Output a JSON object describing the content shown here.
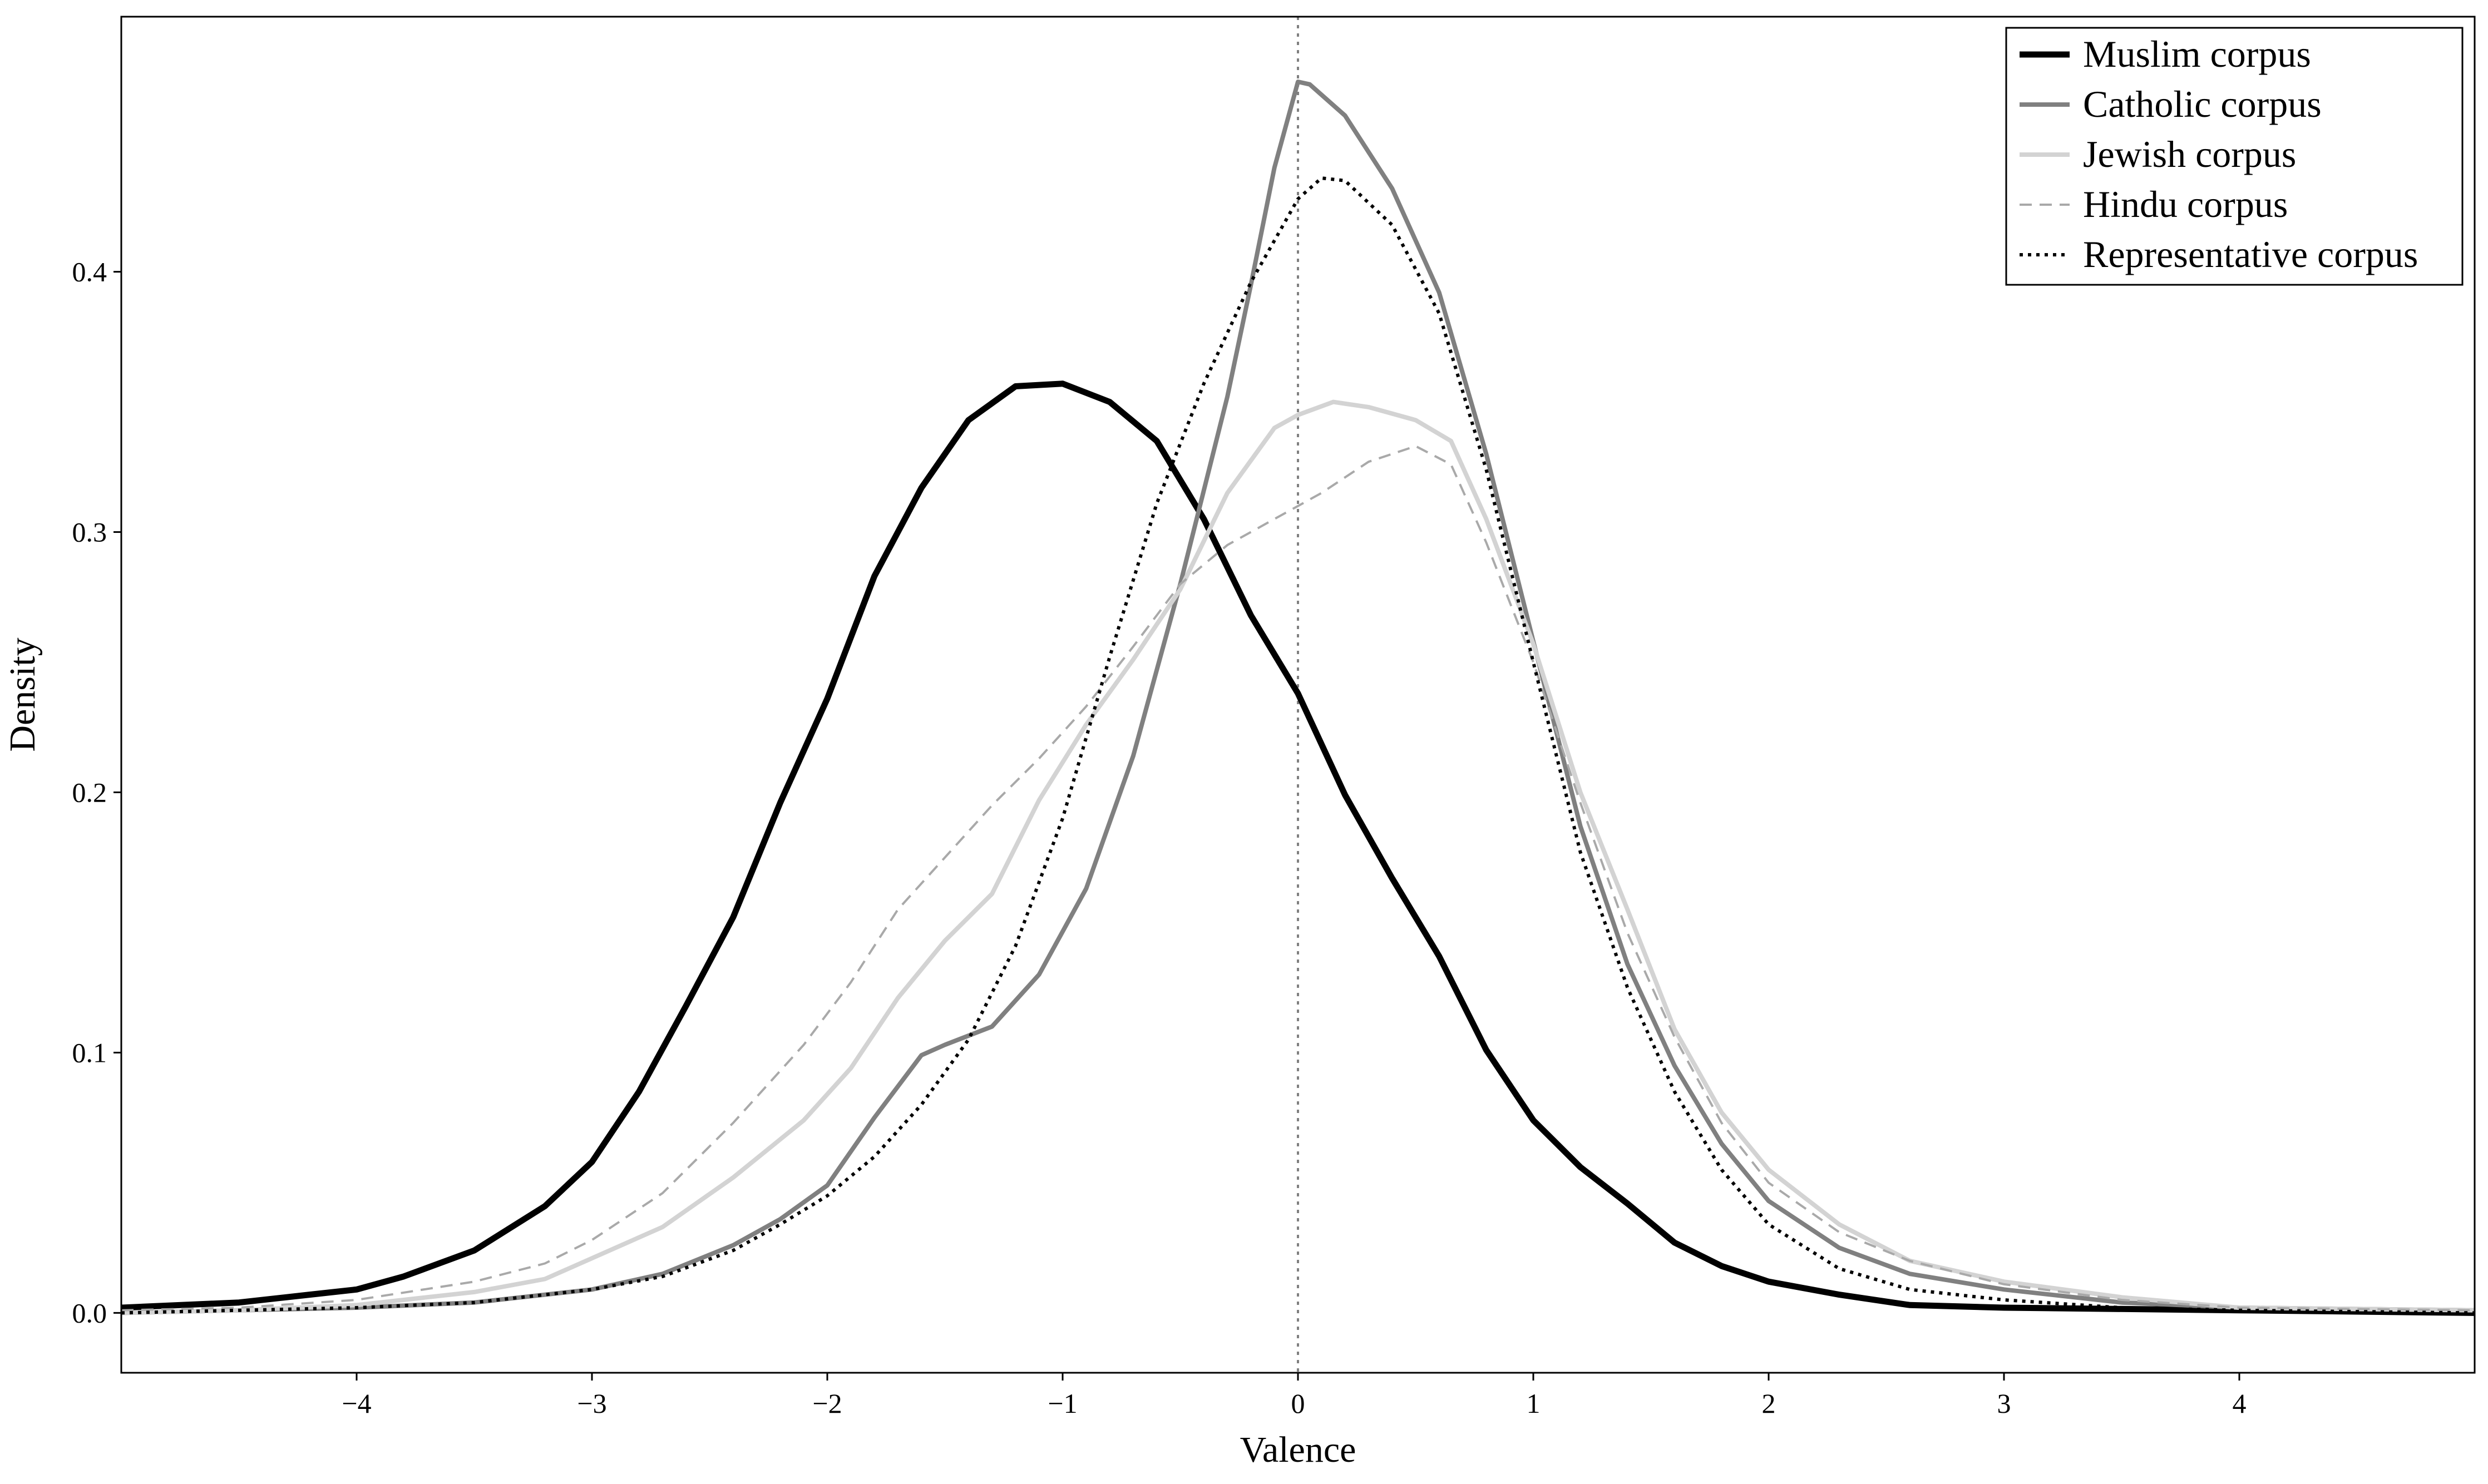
{
  "chart_data": {
    "type": "line",
    "title": "",
    "xlabel": "Valence",
    "ylabel": "Density",
    "xlim": [
      -5.0,
      5.0
    ],
    "ylim": [
      -0.023,
      0.498
    ],
    "xticks": [
      -4,
      -3,
      -2,
      -1,
      0,
      1,
      2,
      3,
      4
    ],
    "xtick_labels": [
      "−4",
      "−3",
      "−2",
      "−1",
      "0",
      "1",
      "2",
      "3",
      "4"
    ],
    "yticks": [
      0.0,
      0.1,
      0.2,
      0.3,
      0.4
    ],
    "ytick_labels": [
      "0.0",
      "0.1",
      "0.2",
      "0.3",
      "0.4"
    ],
    "grid": false,
    "legend_position": "top-right",
    "reference_line": {
      "x": 0,
      "style": "dotted",
      "color": "#808080"
    },
    "series": [
      {
        "name": "Muslim corpus",
        "color": "#000000",
        "style": "solid",
        "width": 11,
        "points": [
          [
            -5.0,
            0.002
          ],
          [
            -4.5,
            0.004
          ],
          [
            -4.2,
            0.007
          ],
          [
            -4.0,
            0.009
          ],
          [
            -3.8,
            0.014
          ],
          [
            -3.5,
            0.024
          ],
          [
            -3.2,
            0.041
          ],
          [
            -3.0,
            0.058
          ],
          [
            -2.8,
            0.085
          ],
          [
            -2.6,
            0.118
          ],
          [
            -2.4,
            0.152
          ],
          [
            -2.2,
            0.196
          ],
          [
            -2.0,
            0.236
          ],
          [
            -1.8,
            0.283
          ],
          [
            -1.6,
            0.317
          ],
          [
            -1.4,
            0.343
          ],
          [
            -1.2,
            0.356
          ],
          [
            -1.0,
            0.357
          ],
          [
            -0.8,
            0.35
          ],
          [
            -0.6,
            0.335
          ],
          [
            -0.4,
            0.305
          ],
          [
            -0.2,
            0.268
          ],
          [
            0.0,
            0.238
          ],
          [
            0.2,
            0.199
          ],
          [
            0.4,
            0.167
          ],
          [
            0.6,
            0.137
          ],
          [
            0.8,
            0.101
          ],
          [
            1.0,
            0.074
          ],
          [
            1.2,
            0.056
          ],
          [
            1.4,
            0.042
          ],
          [
            1.6,
            0.027
          ],
          [
            1.8,
            0.018
          ],
          [
            2.0,
            0.012
          ],
          [
            2.3,
            0.007
          ],
          [
            2.6,
            0.003
          ],
          [
            3.0,
            0.002
          ],
          [
            4.0,
            0.001
          ],
          [
            5.0,
            0.0
          ]
        ]
      },
      {
        "name": "Catholic corpus",
        "color": "#808080",
        "style": "solid",
        "width": 8,
        "points": [
          [
            -5.0,
            0.0
          ],
          [
            -4.5,
            0.001
          ],
          [
            -4.0,
            0.002
          ],
          [
            -3.5,
            0.004
          ],
          [
            -3.0,
            0.009
          ],
          [
            -2.7,
            0.015
          ],
          [
            -2.4,
            0.026
          ],
          [
            -2.2,
            0.036
          ],
          [
            -2.0,
            0.049
          ],
          [
            -1.8,
            0.075
          ],
          [
            -1.6,
            0.099
          ],
          [
            -1.5,
            0.103
          ],
          [
            -1.3,
            0.11
          ],
          [
            -1.1,
            0.13
          ],
          [
            -0.9,
            0.163
          ],
          [
            -0.7,
            0.214
          ],
          [
            -0.5,
            0.28
          ],
          [
            -0.3,
            0.352
          ],
          [
            -0.2,
            0.395
          ],
          [
            -0.1,
            0.44
          ],
          [
            0.0,
            0.473
          ],
          [
            0.05,
            0.472
          ],
          [
            0.2,
            0.46
          ],
          [
            0.4,
            0.432
          ],
          [
            0.6,
            0.392
          ],
          [
            0.8,
            0.33
          ],
          [
            1.0,
            0.258
          ],
          [
            1.2,
            0.187
          ],
          [
            1.4,
            0.134
          ],
          [
            1.6,
            0.095
          ],
          [
            1.8,
            0.065
          ],
          [
            2.0,
            0.043
          ],
          [
            2.3,
            0.025
          ],
          [
            2.6,
            0.015
          ],
          [
            3.0,
            0.009
          ],
          [
            3.5,
            0.004
          ],
          [
            4.0,
            0.002
          ],
          [
            5.0,
            0.001
          ]
        ]
      },
      {
        "name": "Jewish corpus",
        "color": "#d3d3d3",
        "style": "solid",
        "width": 8,
        "points": [
          [
            -5.0,
            0.0
          ],
          [
            -4.5,
            0.001
          ],
          [
            -4.0,
            0.003
          ],
          [
            -3.5,
            0.008
          ],
          [
            -3.2,
            0.013
          ],
          [
            -3.0,
            0.021
          ],
          [
            -2.7,
            0.033
          ],
          [
            -2.4,
            0.052
          ],
          [
            -2.1,
            0.074
          ],
          [
            -1.9,
            0.094
          ],
          [
            -1.7,
            0.121
          ],
          [
            -1.5,
            0.143
          ],
          [
            -1.3,
            0.161
          ],
          [
            -1.1,
            0.197
          ],
          [
            -0.9,
            0.226
          ],
          [
            -0.7,
            0.251
          ],
          [
            -0.5,
            0.278
          ],
          [
            -0.3,
            0.315
          ],
          [
            -0.1,
            0.34
          ],
          [
            0.0,
            0.345
          ],
          [
            0.15,
            0.35
          ],
          [
            0.3,
            0.348
          ],
          [
            0.5,
            0.343
          ],
          [
            0.65,
            0.335
          ],
          [
            0.8,
            0.305
          ],
          [
            1.0,
            0.257
          ],
          [
            1.2,
            0.2
          ],
          [
            1.4,
            0.155
          ],
          [
            1.6,
            0.109
          ],
          [
            1.8,
            0.077
          ],
          [
            2.0,
            0.055
          ],
          [
            2.3,
            0.034
          ],
          [
            2.6,
            0.02
          ],
          [
            3.0,
            0.012
          ],
          [
            3.5,
            0.006
          ],
          [
            4.0,
            0.002
          ],
          [
            5.0,
            0.001
          ]
        ]
      },
      {
        "name": "Hindu corpus",
        "color": "#a9a9a9",
        "style": "dashed",
        "width": 4,
        "points": [
          [
            -5.0,
            0.001
          ],
          [
            -4.5,
            0.002
          ],
          [
            -4.0,
            0.005
          ],
          [
            -3.5,
            0.012
          ],
          [
            -3.2,
            0.019
          ],
          [
            -3.0,
            0.028
          ],
          [
            -2.7,
            0.046
          ],
          [
            -2.4,
            0.073
          ],
          [
            -2.1,
            0.103
          ],
          [
            -1.9,
            0.127
          ],
          [
            -1.7,
            0.155
          ],
          [
            -1.5,
            0.175
          ],
          [
            -1.3,
            0.195
          ],
          [
            -1.1,
            0.213
          ],
          [
            -0.9,
            0.233
          ],
          [
            -0.7,
            0.256
          ],
          [
            -0.5,
            0.28
          ],
          [
            -0.3,
            0.295
          ],
          [
            -0.1,
            0.305
          ],
          [
            0.1,
            0.315
          ],
          [
            0.3,
            0.327
          ],
          [
            0.5,
            0.333
          ],
          [
            0.65,
            0.326
          ],
          [
            0.8,
            0.296
          ],
          [
            1.0,
            0.25
          ],
          [
            1.2,
            0.196
          ],
          [
            1.4,
            0.146
          ],
          [
            1.6,
            0.106
          ],
          [
            1.8,
            0.073
          ],
          [
            2.0,
            0.05
          ],
          [
            2.3,
            0.031
          ],
          [
            2.6,
            0.02
          ],
          [
            3.0,
            0.011
          ],
          [
            3.5,
            0.005
          ],
          [
            4.0,
            0.002
          ],
          [
            5.0,
            0.001
          ]
        ]
      },
      {
        "name": "Representative corpus",
        "color": "#000000",
        "style": "dotted",
        "width": 6,
        "points": [
          [
            -5.0,
            0.0
          ],
          [
            -4.5,
            0.001
          ],
          [
            -4.0,
            0.002
          ],
          [
            -3.5,
            0.004
          ],
          [
            -3.0,
            0.009
          ],
          [
            -2.7,
            0.014
          ],
          [
            -2.4,
            0.024
          ],
          [
            -2.2,
            0.034
          ],
          [
            -2.0,
            0.045
          ],
          [
            -1.8,
            0.06
          ],
          [
            -1.6,
            0.08
          ],
          [
            -1.4,
            0.105
          ],
          [
            -1.2,
            0.141
          ],
          [
            -1.0,
            0.19
          ],
          [
            -0.8,
            0.252
          ],
          [
            -0.6,
            0.311
          ],
          [
            -0.4,
            0.357
          ],
          [
            -0.2,
            0.396
          ],
          [
            0.0,
            0.428
          ],
          [
            0.1,
            0.436
          ],
          [
            0.2,
            0.435
          ],
          [
            0.4,
            0.418
          ],
          [
            0.6,
            0.384
          ],
          [
            0.8,
            0.324
          ],
          [
            1.0,
            0.25
          ],
          [
            1.2,
            0.177
          ],
          [
            1.4,
            0.125
          ],
          [
            1.6,
            0.085
          ],
          [
            1.8,
            0.055
          ],
          [
            2.0,
            0.034
          ],
          [
            2.3,
            0.017
          ],
          [
            2.6,
            0.009
          ],
          [
            3.0,
            0.005
          ],
          [
            3.5,
            0.002
          ],
          [
            4.0,
            0.001
          ],
          [
            5.0,
            0.0
          ]
        ]
      }
    ]
  }
}
